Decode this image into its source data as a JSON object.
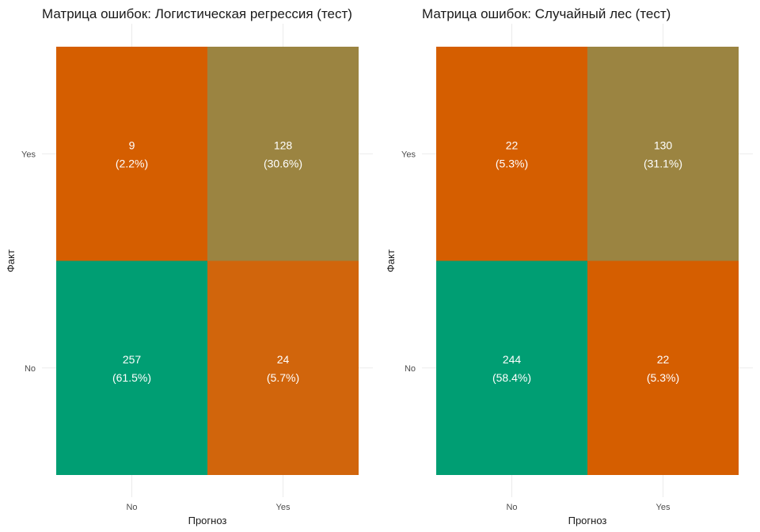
{
  "chart_data": [
    {
      "type": "heatmap",
      "title": "Матрица ошибок: Логистическая регрессия (тест)",
      "xlabel": "Прогноз",
      "ylabel": "Факт",
      "x_categories": [
        "No",
        "Yes"
      ],
      "y_categories": [
        "No",
        "Yes"
      ],
      "cells": [
        {
          "actual": "Yes",
          "predicted": "No",
          "count": "9",
          "percent": "(2.2%)",
          "color": "#D55E00"
        },
        {
          "actual": "Yes",
          "predicted": "Yes",
          "count": "128",
          "percent": "(30.6%)",
          "color": "#9B8441"
        },
        {
          "actual": "No",
          "predicted": "No",
          "count": "257",
          "percent": "(61.5%)",
          "color": "#009E73"
        },
        {
          "actual": "No",
          "predicted": "Yes",
          "count": "24",
          "percent": "(5.7%)",
          "color": "#D1650C"
        }
      ]
    },
    {
      "type": "heatmap",
      "title": "Матрица ошибок: Случайный лес (тест)",
      "xlabel": "Прогноз",
      "ylabel": "Факт",
      "x_categories": [
        "No",
        "Yes"
      ],
      "y_categories": [
        "No",
        "Yes"
      ],
      "cells": [
        {
          "actual": "Yes",
          "predicted": "No",
          "count": "22",
          "percent": "(5.3%)",
          "color": "#D55E00"
        },
        {
          "actual": "Yes",
          "predicted": "Yes",
          "count": "130",
          "percent": "(31.1%)",
          "color": "#9B8441"
        },
        {
          "actual": "No",
          "predicted": "No",
          "count": "244",
          "percent": "(58.4%)",
          "color": "#009E73"
        },
        {
          "actual": "No",
          "predicted": "Yes",
          "count": "22",
          "percent": "(5.3%)",
          "color": "#D55E00"
        }
      ]
    }
  ]
}
